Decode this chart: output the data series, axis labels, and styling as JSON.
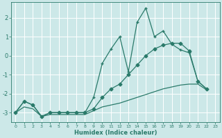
{
  "xlabel": "Humidex (Indice chaleur)",
  "bg_color": "#cce8e8",
  "grid_color": "#b8d8d8",
  "line_color": "#2a7a6a",
  "xlim": [
    -0.5,
    23.5
  ],
  "ylim": [
    -3.5,
    2.8
  ],
  "yticks": [
    -3,
    -2,
    -1,
    0,
    1,
    2
  ],
  "xticks": [
    0,
    1,
    2,
    3,
    4,
    5,
    6,
    7,
    8,
    9,
    10,
    11,
    12,
    13,
    14,
    15,
    16,
    17,
    18,
    19,
    20,
    21,
    22,
    23
  ],
  "series1_x": [
    0,
    1,
    2,
    3,
    4,
    5,
    6,
    7,
    8,
    9,
    10,
    11,
    12,
    13,
    14,
    15,
    16,
    17,
    18,
    19,
    20,
    21,
    22
  ],
  "series1_y": [
    -3.0,
    -2.4,
    -2.6,
    -3.2,
    -3.0,
    -3.0,
    -3.0,
    -3.0,
    -3.0,
    -2.2,
    -0.4,
    0.35,
    1.0,
    -0.85,
    1.75,
    2.5,
    1.0,
    1.3,
    0.6,
    0.3,
    0.15,
    -1.35,
    -1.75
  ],
  "series2_x": [
    0,
    1,
    2,
    3,
    4,
    5,
    6,
    7,
    8,
    9,
    10,
    11,
    12,
    13,
    14,
    15,
    16,
    17,
    18,
    19,
    20,
    21,
    22
  ],
  "series2_y": [
    -3.0,
    -2.4,
    -2.6,
    -3.2,
    -3.0,
    -3.0,
    -3.0,
    -3.0,
    -3.0,
    -2.8,
    -2.2,
    -1.75,
    -1.5,
    -1.0,
    -0.5,
    0.0,
    0.35,
    0.55,
    0.65,
    0.65,
    0.25,
    -1.35,
    -1.75
  ],
  "series3_x": [
    0,
    1,
    2,
    3,
    4,
    5,
    6,
    7,
    8,
    9,
    10,
    11,
    12,
    13,
    14,
    15,
    16,
    17,
    18,
    19,
    20,
    21,
    22
  ],
  "series3_y": [
    -3.0,
    -2.7,
    -2.8,
    -3.2,
    -3.1,
    -3.1,
    -3.1,
    -3.1,
    -3.1,
    -2.9,
    -2.7,
    -2.6,
    -2.5,
    -2.35,
    -2.2,
    -2.05,
    -1.9,
    -1.75,
    -1.65,
    -1.55,
    -1.5,
    -1.5,
    -1.8
  ]
}
